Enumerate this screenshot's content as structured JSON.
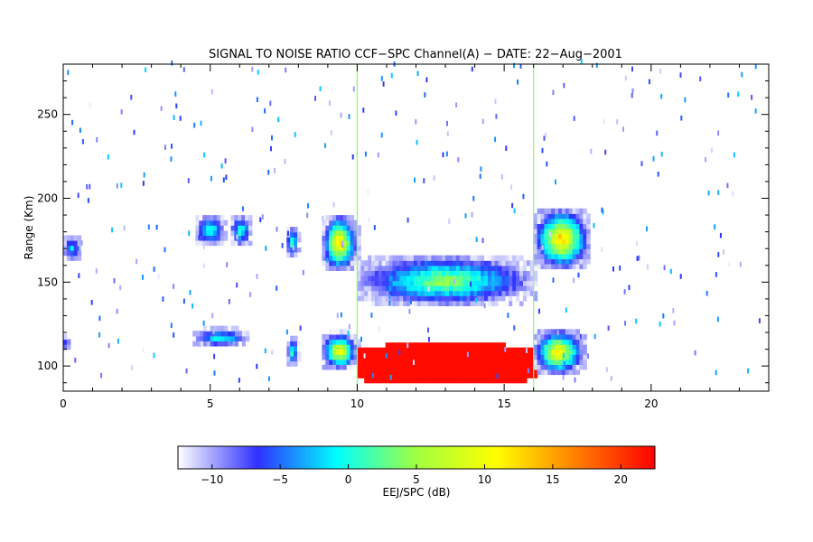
{
  "chart_data": {
    "type": "heatmap",
    "title": "SIGNAL TO NOISE RATIO CCF−SPC Channel(A) − DATE: 22−Aug−2001",
    "xlabel": "",
    "ylabel": "Range (Km)",
    "xlim": [
      0,
      24
    ],
    "ylim": [
      85,
      280
    ],
    "x_ticks": [
      0,
      5,
      10,
      15,
      20
    ],
    "x_tick_labels": [
      "0",
      "5",
      "10",
      "15",
      "20"
    ],
    "y_ticks": [
      100,
      150,
      200,
      250
    ],
    "y_tick_labels": [
      "100",
      "150",
      "200",
      "250"
    ],
    "grid": false,
    "colorbar": {
      "label": "EEJ/SPC (dB)",
      "range": [
        -12.5,
        22.5
      ],
      "ticks": [
        -10,
        -5,
        0,
        5,
        10,
        15,
        20
      ],
      "tick_labels": [
        "−10",
        "−5",
        "0",
        "5",
        "10",
        "15",
        "20"
      ],
      "colors": [
        "#ffffff",
        "#3030ff",
        "#00ffff",
        "#a0ff40",
        "#ffff00",
        "#ff8000",
        "#ff0000"
      ]
    },
    "regions": [
      {
        "name": "echo-upper-0",
        "x": [
          0.0,
          0.6
        ],
        "y": [
          163,
          178
        ],
        "peak_db": -2
      },
      {
        "name": "echo-lower-0",
        "x": [
          0.0,
          0.2
        ],
        "y": [
          110,
          117
        ],
        "peak_db": -3
      },
      {
        "name": "echo-upper-4.5",
        "x": [
          4.5,
          5.5
        ],
        "y": [
          172,
          190
        ],
        "peak_db": 2
      },
      {
        "name": "echo-upper-5.7",
        "x": [
          5.7,
          6.4
        ],
        "y": [
          172,
          190
        ],
        "peak_db": 2
      },
      {
        "name": "echo-lower-4.5",
        "x": [
          4.4,
          6.3
        ],
        "y": [
          112,
          122
        ],
        "peak_db": 1
      },
      {
        "name": "echo-upper-7.8",
        "x": [
          7.6,
          8.0
        ],
        "y": [
          165,
          183
        ],
        "peak_db": 3
      },
      {
        "name": "echo-lower-7.8",
        "x": [
          7.6,
          8.0
        ],
        "y": [
          100,
          118
        ],
        "peak_db": 2
      },
      {
        "name": "echo-upper-9",
        "x": [
          8.8,
          10.0
        ],
        "y": [
          157,
          190
        ],
        "peak_db": 14
      },
      {
        "name": "echo-lower-9",
        "x": [
          8.8,
          10.0
        ],
        "y": [
          98,
          120
        ],
        "peak_db": 12
      },
      {
        "name": "echo-band-mid",
        "x": [
          10.0,
          16.0
        ],
        "y": [
          136,
          166
        ],
        "peak_db": 6
      },
      {
        "name": "echo-saturated",
        "x": [
          10.0,
          16.0
        ],
        "y": [
          90,
          112
        ],
        "peak_db": 22
      },
      {
        "name": "echo-upper-16",
        "x": [
          16.0,
          17.9
        ],
        "y": [
          158,
          194
        ],
        "peak_db": 15
      },
      {
        "name": "echo-lower-16",
        "x": [
          16.0,
          17.7
        ],
        "y": [
          95,
          122
        ],
        "peak_db": 13
      }
    ]
  }
}
